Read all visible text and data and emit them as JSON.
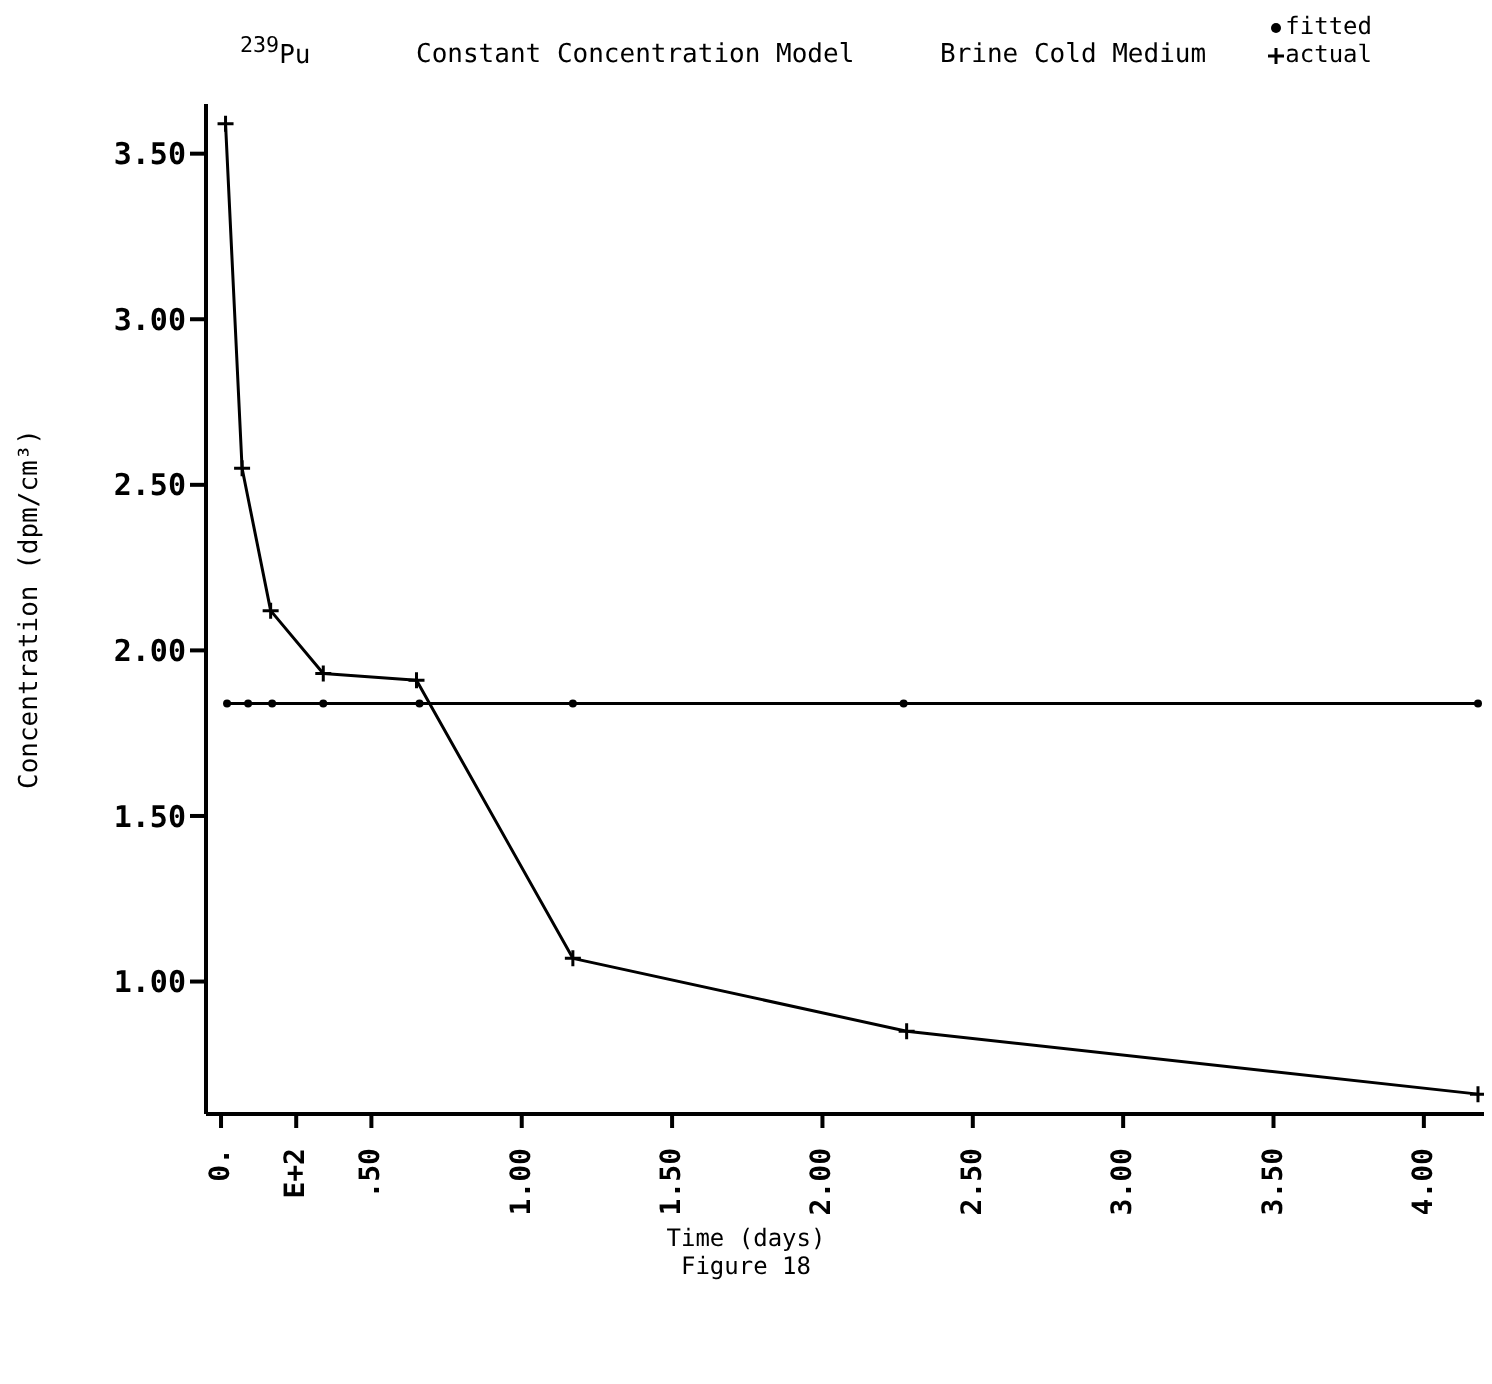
{
  "chart_data": {
    "type": "line",
    "title": "Constant Concentration Model",
    "xlabel": "Time (days)",
    "ylabel": "Concentration (dpm/cm³)",
    "annotations": [
      "$^{239}$Pu",
      "Brine Cold Medium",
      "Figure 18"
    ],
    "legend": "top right",
    "grid": false,
    "line_style": "solid",
    "series": [
      {
        "name": "fitted",
        "color": "#000000",
        "marker": "circle",
        "x": [
          0.02,
          0.09,
          0.17,
          0.34,
          0.66,
          1.17,
          2.27,
          4.18
        ],
        "values": [
          1.84,
          1.84,
          1.84,
          1.84,
          1.84,
          1.84,
          1.84,
          1.84
        ]
      },
      {
        "name": "actual",
        "color": "#000000",
        "marker": "cross",
        "x": [
          0.015,
          0.07,
          0.165,
          0.34,
          0.65,
          1.17,
          2.28,
          4.18
        ],
        "values": [
          3.59,
          2.55,
          2.12,
          1.93,
          1.91,
          1.07,
          0.85,
          0.66
        ]
      }
    ],
    "xlim": [
      -0.05,
      4.2
    ],
    "ylim": [
      0.6,
      3.65
    ],
    "xticks": [
      {
        "value": 0,
        "label": "0."
      },
      {
        "value": 0.25,
        "label": "E+2"
      },
      {
        "value": 0.5,
        "label": ".50"
      },
      {
        "value": 1,
        "label": "1.00"
      },
      {
        "value": 1.5,
        "label": "1.50"
      },
      {
        "value": 2,
        "label": "2.00"
      },
      {
        "value": 2.5,
        "label": "2.50"
      },
      {
        "value": 3,
        "label": "3.00"
      },
      {
        "value": 3.5,
        "label": "3.50"
      },
      {
        "value": 4,
        "label": "4.00"
      }
    ],
    "yticks": [
      {
        "value": 1,
        "label": "1.00"
      },
      {
        "value": 1.5,
        "label": "1.50"
      },
      {
        "value": 2,
        "label": "2.00"
      },
      {
        "value": 2.5,
        "label": "2.50"
      },
      {
        "value": 3,
        "label": "3.00"
      },
      {
        "value": 3.5,
        "label": "3.50"
      }
    ]
  }
}
